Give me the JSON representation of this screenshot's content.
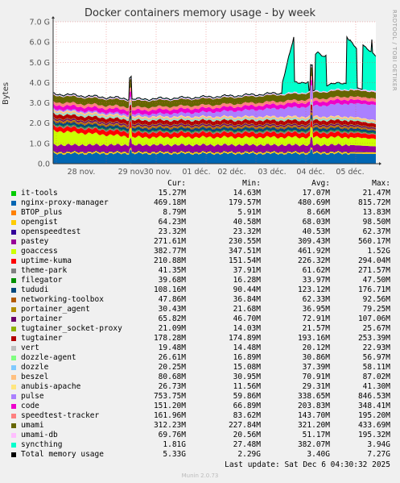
{
  "chart_data": {
    "type": "area",
    "title": "Docker containers memory usage - by week",
    "ylabel": "Bytes",
    "y_ticks": [
      "0.0",
      "1.0 G",
      "2.0 G",
      "3.0 G",
      "4.0 G",
      "5.0 G",
      "6.0 G",
      "7.0 G"
    ],
    "x_ticks": [
      "28 nov.",
      "29 nov.",
      "30 nov.",
      "01 déc.",
      "02 déc.",
      "03 déc.",
      "04 déc.",
      "05 déc."
    ],
    "ylim": [
      0,
      7.0
    ],
    "grid": true,
    "stacked": true,
    "legend_headers": [
      "Cur:",
      "Min:",
      "Avg:",
      "Max:"
    ],
    "series": [
      {
        "name": "it-tools",
        "color": "#00cc00",
        "cur": "15.27M",
        "min": "14.63M",
        "avg": "17.07M",
        "max": "21.47M"
      },
      {
        "name": "nginx-proxy-manager",
        "color": "#0066b3",
        "cur": "469.18M",
        "min": "179.57M",
        "avg": "480.69M",
        "max": "815.72M"
      },
      {
        "name": "BTOP_plus",
        "color": "#ff8000",
        "cur": "8.79M",
        "min": "5.91M",
        "avg": "8.66M",
        "max": "13.83M"
      },
      {
        "name": "opengist",
        "color": "#ffcc00",
        "cur": "64.23M",
        "min": "40.58M",
        "avg": "68.03M",
        "max": "98.50M"
      },
      {
        "name": "openspeedtest",
        "color": "#330099",
        "cur": "23.32M",
        "min": "23.32M",
        "avg": "40.53M",
        "max": "62.37M"
      },
      {
        "name": "pastey",
        "color": "#990099",
        "cur": "271.61M",
        "min": "230.55M",
        "avg": "309.43M",
        "max": "560.17M"
      },
      {
        "name": "goaccess",
        "color": "#ccff00",
        "cur": "382.77M",
        "min": "347.51M",
        "avg": "461.92M",
        "max": "1.52G"
      },
      {
        "name": "uptime-kuma",
        "color": "#ff0000",
        "cur": "210.88M",
        "min": "151.54M",
        "avg": "226.32M",
        "max": "294.04M"
      },
      {
        "name": "theme-park",
        "color": "#808080",
        "cur": "41.35M",
        "min": "37.91M",
        "avg": "61.62M",
        "max": "271.57M"
      },
      {
        "name": "filegator",
        "color": "#008f00",
        "cur": "39.68M",
        "min": "16.28M",
        "avg": "33.97M",
        "max": "47.50M"
      },
      {
        "name": "tududi",
        "color": "#00487d",
        "cur": "108.16M",
        "min": "90.44M",
        "avg": "123.12M",
        "max": "176.71M"
      },
      {
        "name": "networking-toolbox",
        "color": "#b35a00",
        "cur": "47.86M",
        "min": "36.84M",
        "avg": "62.33M",
        "max": "92.56M"
      },
      {
        "name": "portainer_agent",
        "color": "#b38f00",
        "cur": "30.43M",
        "min": "21.68M",
        "avg": "36.95M",
        "max": "79.25M"
      },
      {
        "name": "portainer",
        "color": "#6b006b",
        "cur": "65.82M",
        "min": "46.70M",
        "avg": "72.91M",
        "max": "107.06M"
      },
      {
        "name": "tugtainer_socket-proxy",
        "color": "#8fb300",
        "cur": "21.09M",
        "min": "14.03M",
        "avg": "21.57M",
        "max": "25.67M"
      },
      {
        "name": "tugtainer",
        "color": "#b30000",
        "cur": "178.28M",
        "min": "174.89M",
        "avg": "193.16M",
        "max": "253.39M"
      },
      {
        "name": "vert",
        "color": "#bebebe",
        "cur": "19.48M",
        "min": "14.48M",
        "avg": "20.12M",
        "max": "22.93M"
      },
      {
        "name": "dozzle-agent",
        "color": "#80ff80",
        "cur": "26.61M",
        "min": "16.89M",
        "avg": "30.86M",
        "max": "56.97M"
      },
      {
        "name": "dozzle",
        "color": "#80c9ff",
        "cur": "20.25M",
        "min": "15.08M",
        "avg": "37.39M",
        "max": "58.11M"
      },
      {
        "name": "beszel",
        "color": "#ffc080",
        "cur": "80.68M",
        "min": "30.95M",
        "avg": "70.91M",
        "max": "87.02M"
      },
      {
        "name": "anubis-apache",
        "color": "#ffe680",
        "cur": "26.73M",
        "min": "11.56M",
        "avg": "29.31M",
        "max": "41.30M"
      },
      {
        "name": "pulse",
        "color": "#aa80ff",
        "cur": "753.75M",
        "min": "59.86M",
        "avg": "338.65M",
        "max": "846.53M"
      },
      {
        "name": "code",
        "color": "#ee00cc",
        "cur": "151.20M",
        "min": "66.89M",
        "avg": "203.83M",
        "max": "348.41M"
      },
      {
        "name": "speedtest-tracker",
        "color": "#ff8080",
        "cur": "161.96M",
        "min": "83.62M",
        "avg": "143.70M",
        "max": "195.20M"
      },
      {
        "name": "umami",
        "color": "#666600",
        "cur": "312.23M",
        "min": "227.84M",
        "avg": "321.20M",
        "max": "433.69M"
      },
      {
        "name": "umami-db",
        "color": "#ffbfff",
        "cur": "69.76M",
        "min": "20.56M",
        "avg": "51.17M",
        "max": "195.32M"
      },
      {
        "name": "syncthing",
        "color": "#00ffcc",
        "cur": "1.81G",
        "min": "27.48M",
        "avg": "382.07M",
        "max": "3.94G"
      },
      {
        "name": "Total memory usage",
        "color": "#000000",
        "cur": "5.33G",
        "min": "2.29G",
        "avg": "3.40G",
        "max": "7.27G"
      }
    ]
  },
  "footer": "Last update: Sat Dec  6 04:30:32 2025",
  "side_text": "RRDTOOL / TOBI OETIKER",
  "munin": "Munin 2.0.73"
}
